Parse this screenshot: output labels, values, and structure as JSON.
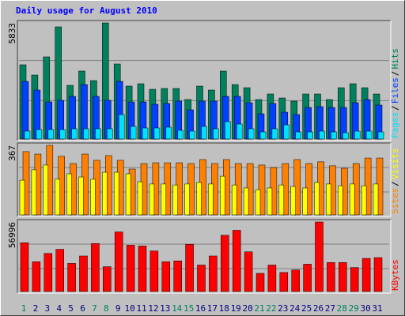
{
  "chart_data": [
    {
      "type": "bar",
      "title": "Daily usage for August 2010",
      "categories": [
        1,
        2,
        3,
        4,
        5,
        6,
        7,
        8,
        9,
        10,
        11,
        12,
        13,
        14,
        15,
        16,
        17,
        18,
        19,
        20,
        21,
        22,
        23,
        24,
        25,
        26,
        27,
        28,
        29,
        30,
        31
      ],
      "ylim": [
        0,
        5833
      ],
      "yticks": [
        5833
      ],
      "legend_separator": "/",
      "series": [
        {
          "name": "Hits",
          "color": "#00805c",
          "values": [
            3730,
            3214,
            4127,
            5635,
            2698,
            3413,
            2937,
            5833,
            3770,
            2659,
            2778,
            2500,
            2540,
            2540,
            1984,
            2659,
            2460,
            3413,
            2738,
            2579,
            1984,
            2262,
            2063,
            1905,
            2262,
            2262,
            1984,
            2579,
            2778,
            2579,
            2262
          ]
        },
        {
          "name": "Files",
          "color": "#0040ff",
          "values": [
            2897,
            2460,
            1865,
            1944,
            2143,
            2738,
            2143,
            1944,
            2897,
            1865,
            1865,
            1746,
            1786,
            1905,
            1468,
            1905,
            1905,
            2143,
            2143,
            1825,
            1270,
            1786,
            1349,
            1230,
            1587,
            1627,
            1587,
            1587,
            1825,
            1984,
            1706
          ]
        },
        {
          "name": "Pages",
          "color": "#00e0ff",
          "values": [
            397,
            476,
            476,
            476,
            516,
            516,
            516,
            516,
            1230,
            635,
            556,
            556,
            595,
            437,
            397,
            635,
            516,
            873,
            754,
            516,
            357,
            516,
            714,
            357,
            357,
            397,
            357,
            318,
            397,
            397,
            357
          ]
        }
      ]
    },
    {
      "type": "bar",
      "categories": [
        1,
        2,
        3,
        4,
        5,
        6,
        7,
        8,
        9,
        10,
        11,
        12,
        13,
        14,
        15,
        16,
        17,
        18,
        19,
        20,
        21,
        22,
        23,
        24,
        25,
        26,
        27,
        28,
        29,
        30,
        31
      ],
      "ylim": [
        0,
        367
      ],
      "yticks": [
        367
      ],
      "legend_separator": "/",
      "series": [
        {
          "name": "Visits",
          "color": "#ffff00",
          "values": [
            183,
            238,
            263,
            188,
            217,
            200,
            188,
            225,
            225,
            217,
            175,
            163,
            163,
            158,
            163,
            171,
            163,
            204,
            158,
            142,
            133,
            142,
            158,
            150,
            142,
            171,
            163,
            154,
            163,
            154,
            163
          ]
        },
        {
          "name": "Sites",
          "color": "#ff8000",
          "values": [
            334,
            321,
            367,
            309,
            271,
            321,
            288,
            313,
            288,
            242,
            271,
            275,
            275,
            275,
            271,
            292,
            271,
            292,
            271,
            271,
            263,
            250,
            271,
            292,
            271,
            280,
            259,
            246,
            271,
            300,
            300
          ]
        }
      ]
    },
    {
      "type": "bar",
      "categories": [
        1,
        2,
        3,
        4,
        5,
        6,
        7,
        8,
        9,
        10,
        11,
        12,
        13,
        14,
        15,
        16,
        17,
        18,
        19,
        20,
        21,
        22,
        23,
        24,
        25,
        26,
        27,
        28,
        29,
        30,
        31
      ],
      "ylim": [
        0,
        56996
      ],
      "yticks": [
        56996
      ],
      "highlight_categories": [
        1,
        7,
        8,
        14,
        15,
        21,
        22,
        28,
        29
      ],
      "highlight_color": "#00805c",
      "series": [
        {
          "name": "KBytes",
          "color": "#ff0000",
          "values": [
            40000,
            24400,
            31200,
            34600,
            23050,
            29150,
            39300,
            20350,
            48850,
            37950,
            37300,
            33250,
            24400,
            25100,
            38650,
            21700,
            29150,
            46100,
            50200,
            32550,
            14900,
            21700,
            15600,
            17650,
            22400,
            56996,
            23750,
            23750,
            19650,
            27150,
            27800
          ]
        }
      ]
    }
  ]
}
